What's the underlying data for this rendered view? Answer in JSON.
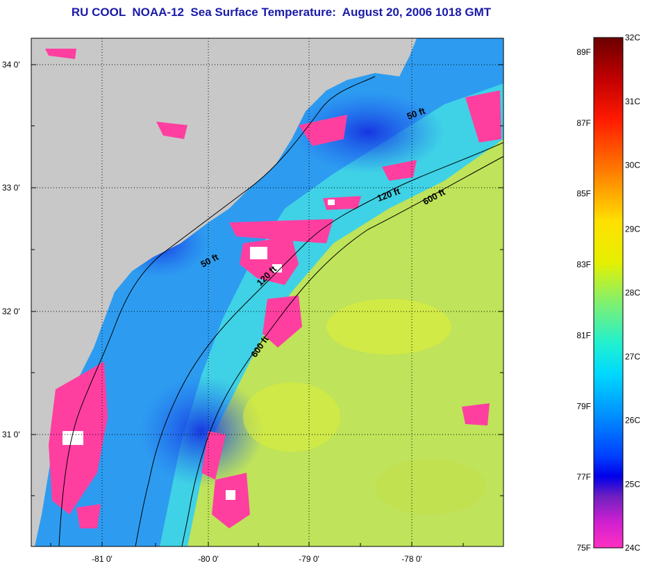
{
  "title": "RU COOL  NOAA-12  Sea Surface Temperature:  August 20, 2006 1018 GMT",
  "map": {
    "lat_ticks": [
      "34 0'",
      "33 0'",
      "32 0'",
      "31 0'"
    ],
    "lon_ticks": [
      "-81 0'",
      "-80 0'",
      "-79 0'",
      "-78 0'"
    ],
    "contour_labels": [
      "50 ft",
      "120 ft",
      "600 ft",
      "50 ft",
      "120 ft",
      "600 ft"
    ],
    "colors": {
      "land": "#c8c8c8",
      "cloud": "#ff3fa0",
      "cool_water": "#1e64f0",
      "warm_water": "#c8e650"
    }
  },
  "colorbar": {
    "celsius_labels": [
      "32C",
      "31C",
      "30C",
      "29C",
      "28C",
      "27C",
      "26C",
      "25C",
      "24C"
    ],
    "fahrenheit_labels": [
      "89F",
      "87F",
      "85F",
      "83F",
      "81F",
      "79F",
      "77F",
      "75F"
    ],
    "colors": [
      "#6b0000",
      "#d40000",
      "#ff3000",
      "#ff8000",
      "#ffd000",
      "#e0f000",
      "#a0f050",
      "#40f0a0",
      "#00f0f0",
      "#00a0ff",
      "#0050ff",
      "#0000f0",
      "#6000c0",
      "#c000e0",
      "#ff20c0"
    ]
  }
}
